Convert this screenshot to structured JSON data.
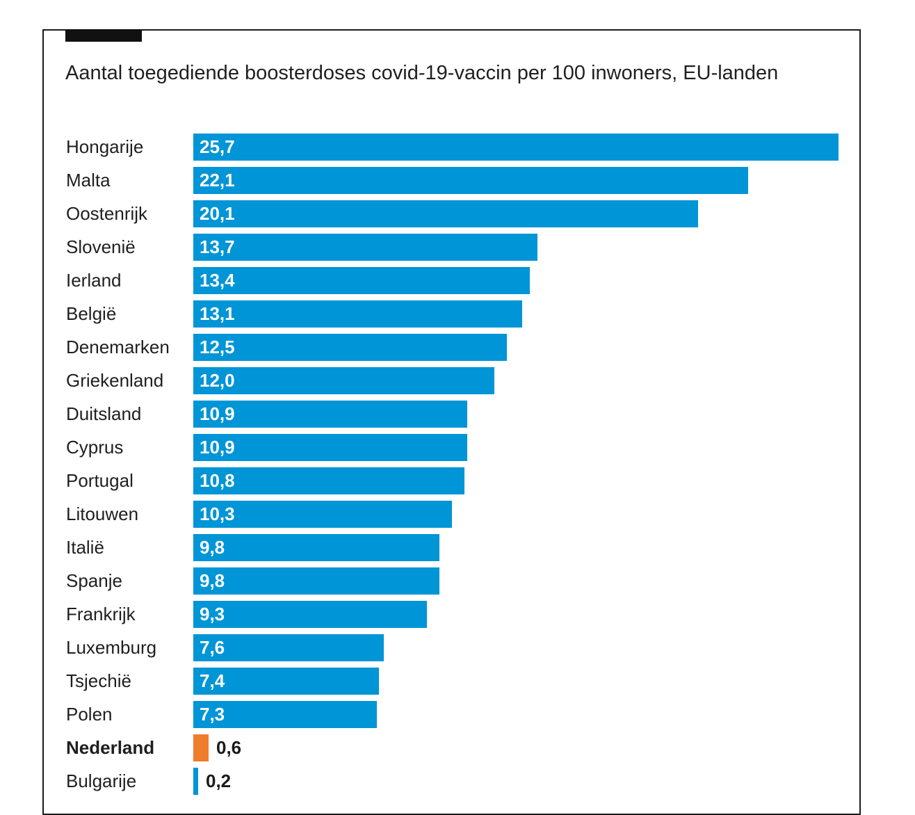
{
  "title": "Aantal toegediende boosterdoses covid-19-vaccin per 100 inwoners, EU-landen",
  "chart_data": {
    "type": "bar",
    "orientation": "horizontal",
    "title": "Aantal toegediende boosterdoses covid-19-vaccin per 100 inwoners, EU-landen",
    "xlabel": "",
    "ylabel": "",
    "xlim": [
      0,
      25.7
    ],
    "grid": false,
    "colors": {
      "default": "#0095d6",
      "highlight": "#f07d2b"
    },
    "categories": [
      "Hongarije",
      "Malta",
      "Oostenrijk",
      "Slovenië",
      "Ierland",
      "België",
      "Denemarken",
      "Griekenland",
      "Duitsland",
      "Cyprus",
      "Portugal",
      "Litouwen",
      "Italië",
      "Spanje",
      "Frankrijk",
      "Luxemburg",
      "Tsjechië",
      "Polen",
      "Nederland",
      "Bulgarije"
    ],
    "values": [
      25.7,
      22.1,
      20.1,
      13.7,
      13.4,
      13.1,
      12.5,
      12.0,
      10.9,
      10.9,
      10.8,
      10.3,
      9.8,
      9.8,
      9.3,
      7.6,
      7.4,
      7.3,
      0.6,
      0.2
    ],
    "value_labels": [
      "25,7",
      "22,1",
      "20,1",
      "13,7",
      "13,4",
      "13,1",
      "12,5",
      "12,0",
      "10,9",
      "10,9",
      "10,8",
      "10,3",
      "9,8",
      "9,8",
      "9,3",
      "7,6",
      "7,4",
      "7,3",
      "0,6",
      "0,2"
    ],
    "highlighted": [
      "Nederland"
    ]
  }
}
